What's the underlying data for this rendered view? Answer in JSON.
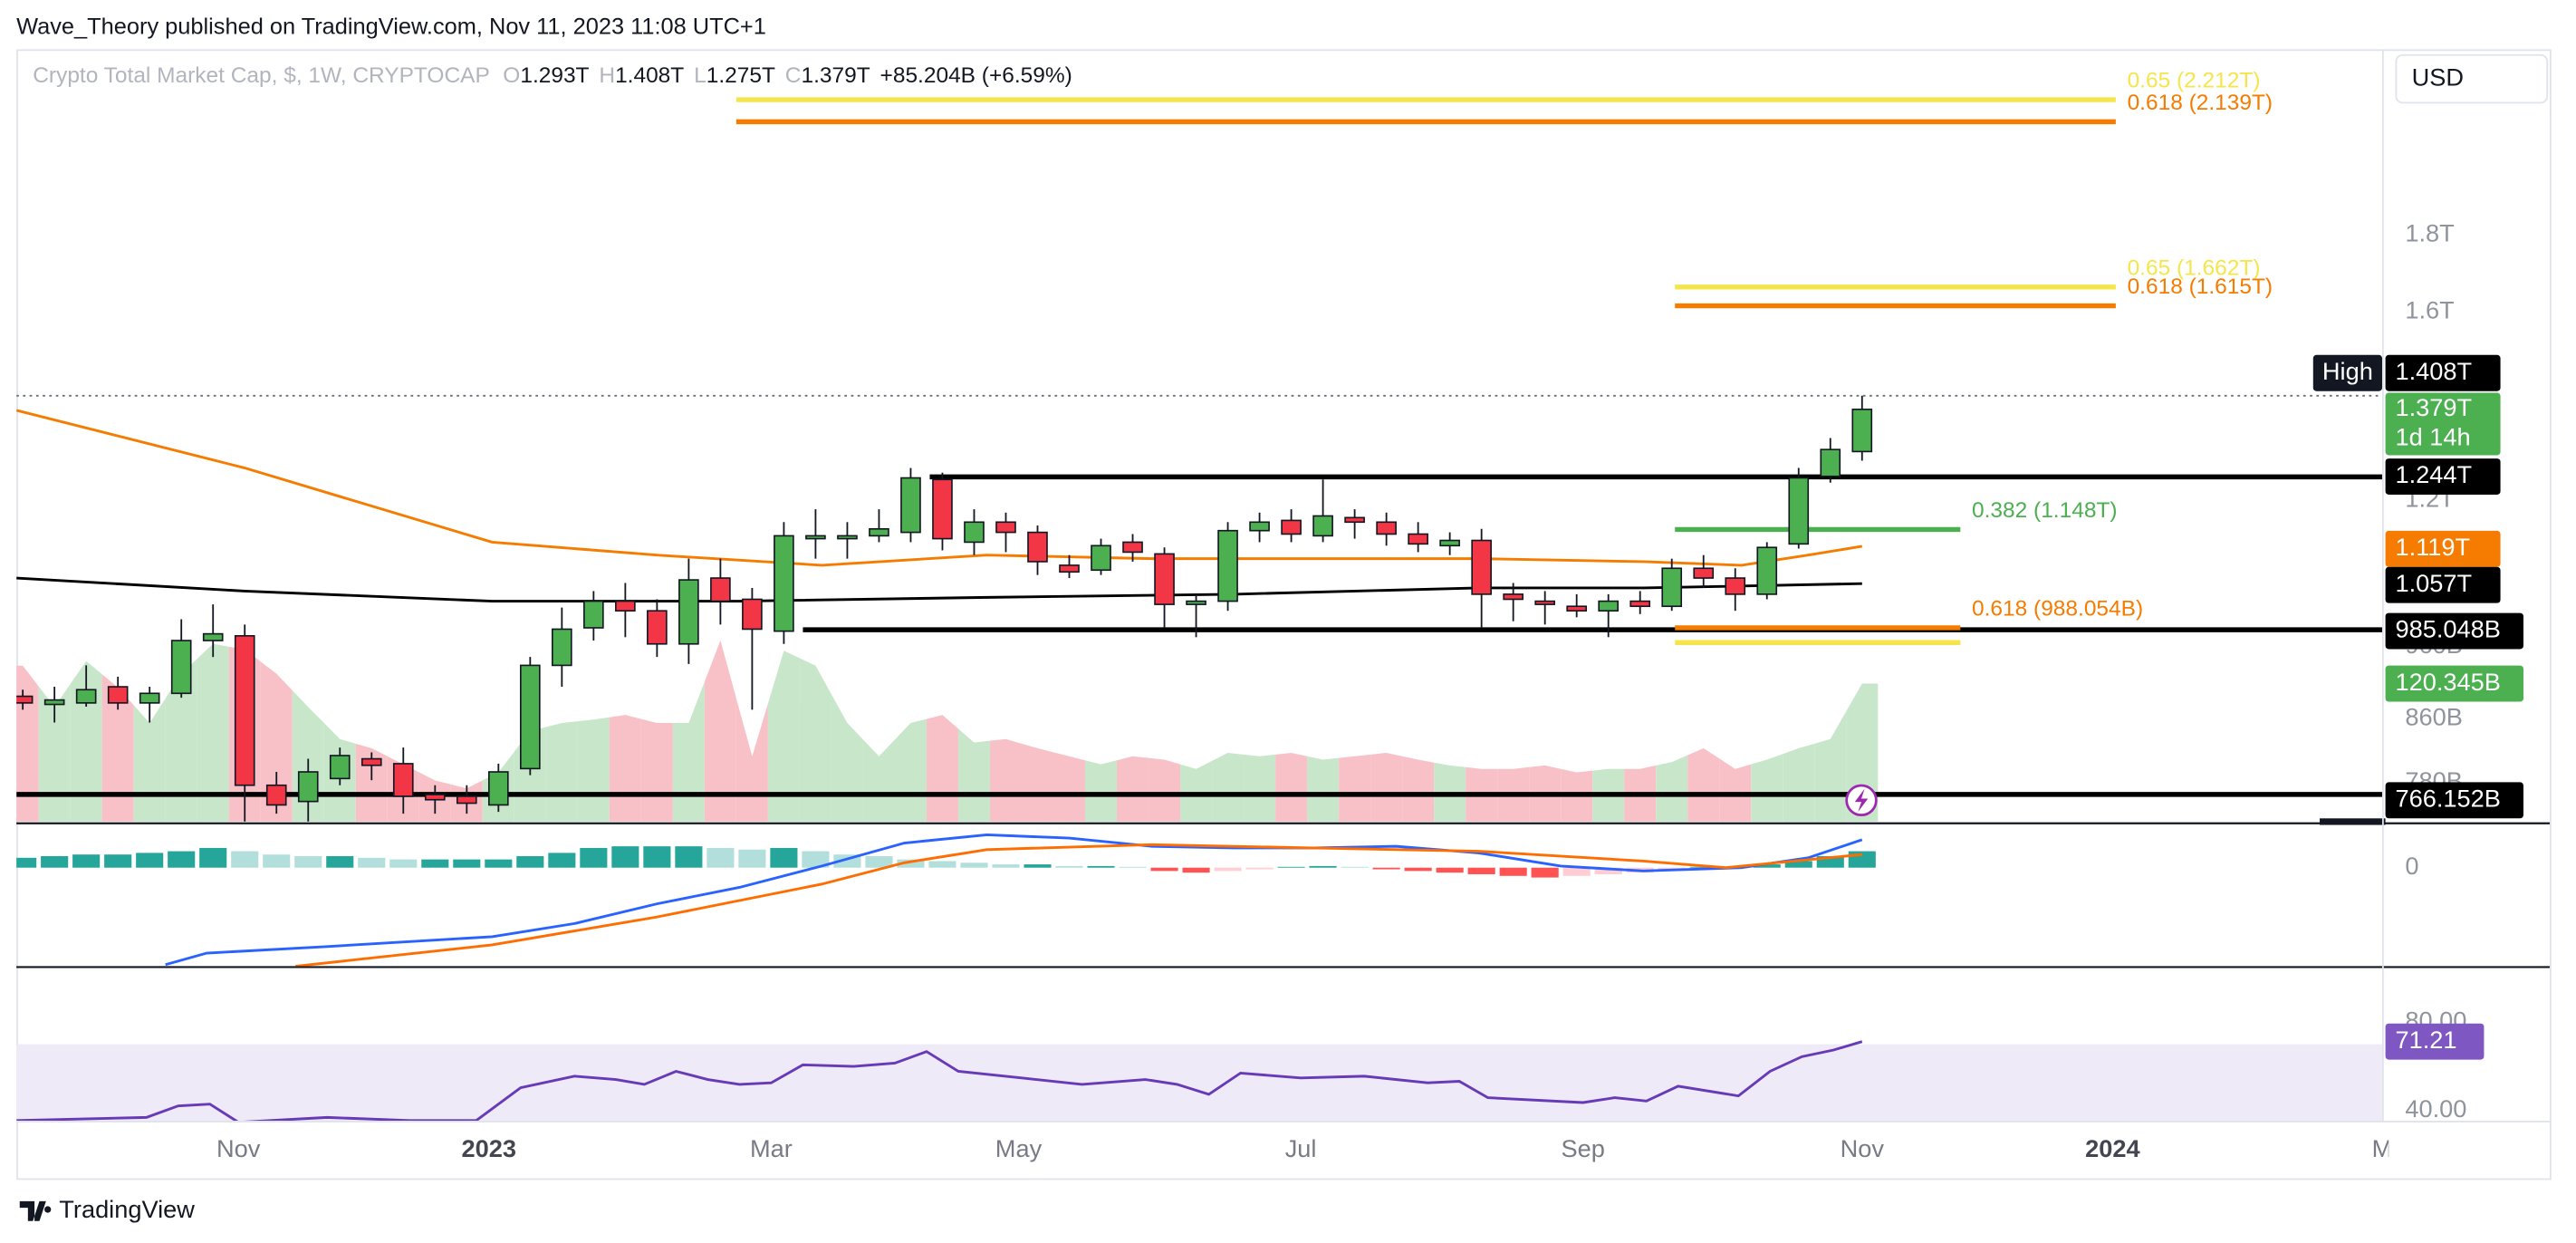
{
  "header": {
    "publisher": "Wave_Theory published on TradingView.com, Nov 11, 2023 11:08 UTC+1",
    "symbol": "Crypto Total Market Cap, $, 1W, CRYPTOCAP",
    "ohlc": [
      {
        "key": "O",
        "text": "1.293T"
      },
      {
        "key": "H",
        "text": "1.408T"
      },
      {
        "key": "L",
        "text": "1.275T"
      },
      {
        "key": "C",
        "text": "1.379T"
      }
    ],
    "change": "+85.204B (+6.59%)",
    "currency": "USD"
  },
  "footer": {
    "brand": "TradingView"
  },
  "chart_data": [
    {
      "type": "candlestick",
      "log_scale": true,
      "ylim": [
        0.735,
        2.389
      ],
      "xlim": [
        -0.2,
        74.4
      ],
      "yticks": [
        {
          "value": 1.8,
          "label": "1.8T"
        },
        {
          "value": 1.6,
          "label": "1.6T"
        },
        {
          "value": 1.2,
          "label": "1.2T"
        },
        {
          "value": 0.96,
          "label": "960B"
        },
        {
          "value": 0.86,
          "label": "860B"
        },
        {
          "value": 0.78,
          "label": "780B"
        }
      ],
      "xticks": [
        {
          "value": 6.8,
          "label": "Nov"
        },
        {
          "value": 14.7,
          "label": "2023",
          "bold": true
        },
        {
          "value": 23.6,
          "label": "Mar"
        },
        {
          "value": 31.4,
          "label": "May"
        },
        {
          "value": 40.3,
          "label": "Jul"
        },
        {
          "value": 49.2,
          "label": "Sep"
        },
        {
          "value": 58,
          "label": "Nov"
        },
        {
          "value": 65.9,
          "label": "2024",
          "bold": true
        },
        {
          "value": 74.4,
          "label": "M"
        }
      ],
      "colors": {
        "up": "#4caf50",
        "down": "#f23645",
        "up_volume": "#c8e6c9",
        "down_volume": "#f8c1c8"
      },
      "open": [
        0.89,
        0.879,
        0.881,
        0.903,
        0.881,
        0.894,
        0.969,
        0.976,
        0.777,
        0.758,
        0.785,
        0.809,
        0.803,
        0.766,
        0.764,
        0.754,
        0.797,
        0.933,
        0.988,
        1.029,
        1.014,
        0.964,
        1.066,
        1.032,
        0.983,
        1.132,
        1.132,
        1.137,
        1.143,
        1.239,
        1.126,
        1.161,
        1.143,
        1.087,
        1.079,
        1.126,
        1.106,
        1.024,
        1.029,
        1.146,
        1.164,
        1.137,
        1.169,
        1.161,
        1.14,
        1.12,
        1.129,
        1.04,
        1.029,
        1.021,
        1.014,
        1.029,
        1.021,
        1.082,
        1.066,
        1.04,
        1.123,
        1.245,
        1.293
      ],
      "high": [
        0.899,
        0.903,
        0.933,
        0.917,
        0.903,
        1.001,
        1.024,
        0.993,
        0.793,
        0.809,
        0.823,
        0.817,
        0.823,
        0.777,
        0.777,
        0.803,
        0.945,
        1.019,
        1.045,
        1.058,
        1.032,
        1.098,
        1.098,
        1.05,
        1.161,
        1.184,
        1.161,
        1.184,
        1.261,
        1.252,
        1.184,
        1.178,
        1.155,
        1.104,
        1.132,
        1.14,
        1.117,
        1.04,
        1.161,
        1.178,
        1.184,
        1.239,
        1.184,
        1.178,
        1.161,
        1.143,
        1.149,
        1.058,
        1.045,
        1.04,
        1.04,
        1.045,
        1.098,
        1.104,
        1.082,
        1.126,
        1.261,
        1.32,
        1.408
      ],
      "low": [
        0.872,
        0.855,
        0.876,
        0.872,
        0.855,
        0.888,
        0.945,
        0.735,
        0.744,
        0.735,
        0.777,
        0.783,
        0.744,
        0.744,
        0.744,
        0.746,
        0.789,
        0.903,
        0.969,
        0.974,
        0.945,
        0.935,
        0.993,
        0.872,
        0.964,
        1.098,
        1.098,
        1.126,
        1.126,
        1.112,
        1.104,
        1.109,
        1.071,
        1.066,
        1.071,
        1.093,
        0.988,
        0.974,
        1.014,
        1.126,
        1.126,
        1.126,
        1.132,
        1.12,
        1.109,
        1.104,
        0.988,
        0.998,
        0.993,
        1.004,
        0.974,
        1.009,
        1.014,
        1.05,
        1.014,
        1.032,
        1.115,
        1.233,
        1.275
      ],
      "close": [
        0.881,
        0.885,
        0.899,
        0.881,
        0.894,
        0.969,
        0.979,
        0.777,
        0.754,
        0.793,
        0.813,
        0.801,
        0.764,
        0.76,
        0.756,
        0.793,
        0.933,
        0.986,
        1.029,
        1.014,
        0.964,
        1.063,
        1.029,
        0.986,
        1.137,
        1.137,
        1.137,
        1.149,
        1.242,
        1.132,
        1.161,
        1.143,
        1.093,
        1.076,
        1.12,
        1.109,
        1.024,
        1.029,
        1.146,
        1.161,
        1.14,
        1.172,
        1.161,
        1.14,
        1.123,
        1.129,
        1.04,
        1.032,
        1.024,
        1.014,
        1.029,
        1.021,
        1.082,
        1.066,
        1.04,
        1.117,
        1.242,
        1.297,
        1.379
      ],
      "volume": [
        136,
        100,
        140,
        117,
        86,
        129,
        155,
        150,
        129,
        100,
        72,
        64,
        50,
        36,
        29,
        43,
        79,
        86,
        89,
        93,
        86,
        86,
        158,
        57,
        149,
        136,
        86,
        57,
        86,
        93,
        69,
        72,
        64,
        57,
        50,
        57,
        54,
        46,
        60,
        57,
        60,
        54,
        57,
        60,
        54,
        49,
        46,
        46,
        49,
        43,
        46,
        46,
        52,
        64,
        46,
        54,
        64,
        72,
        120.345
      ],
      "lines": [
        {
          "color": "#f57c00",
          "x": [
            -0.2,
            7,
            14.8,
            20,
            25.2,
            30.4,
            35.6,
            40.7,
            45.9,
            51.1,
            54.2,
            56.3,
            58
          ],
          "values": [
            1.377,
            1.261,
            1.126,
            1.104,
            1.087,
            1.104,
            1.098,
            1.098,
            1.098,
            1.093,
            1.087,
            1.104,
            1.119
          ]
        },
        {
          "color": "#000000",
          "x": [
            -0.2,
            7,
            14.8,
            22.6,
            30.4,
            38.2,
            45.9,
            51.1,
            58
          ],
          "values": [
            1.066,
            1.045,
            1.029,
            1.029,
            1.035,
            1.04,
            1.05,
            1.05,
            1.057
          ]
        }
      ],
      "levels": [
        {
          "value": 1.408,
          "from": -0.2,
          "to": 74.4,
          "color": "#6b6f7a",
          "style": "dotted"
        },
        {
          "value": 1.244,
          "from": 28.6,
          "to": 74.4,
          "color": "#000000"
        },
        {
          "value": 0.985048,
          "from": 24.6,
          "to": 74.4,
          "color": "#000000"
        },
        {
          "value": 0.766152,
          "from": -0.2,
          "to": 74.4,
          "color": "#000000"
        },
        {
          "value": 2.212,
          "from": 22.5,
          "to": 66,
          "color": "#f5e54a",
          "label": "0.65 (2.212T)"
        },
        {
          "value": 2.139,
          "from": 22.5,
          "to": 66,
          "color": "#f57c00",
          "label": "0.618 (2.139T)"
        },
        {
          "value": 1.662,
          "from": 52.1,
          "to": 66,
          "color": "#f5e54a",
          "label": "0.65 (1.662T)"
        },
        {
          "value": 1.615,
          "from": 52.1,
          "to": 66,
          "color": "#f57c00",
          "label": "0.618 (1.615T)"
        },
        {
          "value": 1.148,
          "from": 52.1,
          "to": 61.1,
          "color": "#4caf50",
          "label": "0.382 (1.148T)"
        },
        {
          "value": 0.988054,
          "from": 52.1,
          "to": 61.1,
          "color": "#f57c00",
          "label": "0.618 (988.054B)"
        },
        {
          "value": 0.966,
          "from": 52.1,
          "to": 61.1,
          "color": "#f5e54a"
        }
      ],
      "price_labels": [
        {
          "tag": "High",
          "text": "1.408T",
          "color": "#000000"
        },
        {
          "text": "1.379T",
          "sub": "1d 14h",
          "color": "#4caf50"
        },
        {
          "text": "1.244T",
          "color": "#000000"
        },
        {
          "text": "1.119T",
          "color": "#f57c00"
        },
        {
          "text": "1.057T",
          "color": "#000000"
        },
        {
          "text": "985.048B",
          "color": "#000000"
        },
        {
          "text": "120.345B",
          "color": "#4caf50"
        },
        {
          "text": "766.152B",
          "color": "#000000"
        }
      ]
    },
    {
      "type": "macd",
      "ylim": [
        -60,
        25
      ],
      "yticks": [
        0
      ],
      "colors": {
        "up": "#26a69a",
        "up_fading": "#b2dfdb",
        "down": "#ff5252",
        "down_fading": "#ffcdd2"
      },
      "histogram": [
        6,
        7,
        8,
        8,
        9,
        10,
        12,
        10,
        8,
        7,
        7,
        6,
        5,
        5,
        5,
        5,
        7,
        9,
        12,
        13,
        13,
        13,
        12,
        11,
        12,
        10,
        8,
        7,
        5,
        4,
        3,
        2,
        2,
        1,
        1,
        0.5,
        -2,
        -3,
        -2,
        -1,
        0.5,
        1,
        0.5,
        -1,
        -2,
        -3,
        -4,
        -5,
        -6,
        -5,
        -4,
        -3,
        -1,
        0.5,
        0.5,
        2,
        4,
        7,
        10
      ],
      "lines": [
        {
          "color": "#2962ff",
          "x": [
            4.5,
            5.8,
            9.6,
            14.8,
            17.4,
            20,
            22.6,
            25.2,
            27.8,
            30.4,
            33,
            35.6,
            38.2,
            40.7,
            43.3,
            45.9,
            48.5,
            51.1,
            54.2,
            56.3,
            58
          ],
          "values": [
            -59,
            -52,
            -48,
            -42,
            -34,
            -22,
            -12,
            1,
            15,
            20,
            18,
            13,
            12,
            12,
            13,
            9,
            1,
            -2,
            0,
            6,
            17
          ]
        },
        {
          "color": "#ff6d00",
          "x": [
            8.6,
            14.8,
            20,
            25.2,
            27.8,
            30.4,
            35.6,
            40.7,
            45.9,
            51.1,
            53.7,
            58
          ],
          "values": [
            -60,
            -47,
            -30,
            -10,
            3,
            11,
            14,
            12,
            10,
            4,
            0,
            8
          ]
        }
      ]
    },
    {
      "type": "rsi",
      "ylim": [
        35.5,
        103.7
      ],
      "yticks": [
        {
          "value": 80,
          "label": "80.00"
        },
        {
          "value": 40,
          "label": "40.00"
        }
      ],
      "band": [
        30,
        70
      ],
      "band_color": "#efeaf7",
      "lines": [
        {
          "color": "#673ab7",
          "x": [
            -0.2,
            3.9,
            4.9,
            5.9,
            6.8,
            9.6,
            12.2,
            14.3,
            15.7,
            17.4,
            18.7,
            19.6,
            20.6,
            21.6,
            22.6,
            23.6,
            24.6,
            26.2,
            27.5,
            28.5,
            29.5,
            31.5,
            33.4,
            35.4,
            36.4,
            37.4,
            38.4,
            40.3,
            42.3,
            44.3,
            45.3,
            46.2,
            49.2,
            50.2,
            51.2,
            52.2,
            54.1,
            55.1,
            56.1,
            57.1,
            58
          ],
          "values": [
            35.6,
            37.0,
            42.2,
            43.0,
            34.8,
            37.0,
            35.6,
            35.6,
            50.4,
            55.6,
            54.1,
            51.9,
            57.8,
            54.1,
            51.9,
            52.6,
            60.7,
            60.0,
            61.5,
            66.7,
            57.8,
            54.8,
            51.9,
            54.1,
            51.9,
            47.4,
            57.0,
            54.8,
            55.6,
            52.6,
            53.3,
            45.9,
            43.7,
            45.9,
            44.4,
            51.1,
            46.7,
            57.8,
            64.4,
            67.4,
            71.21
          ]
        }
      ],
      "last_label": "71.21",
      "last_color": "#7e57c2"
    }
  ]
}
